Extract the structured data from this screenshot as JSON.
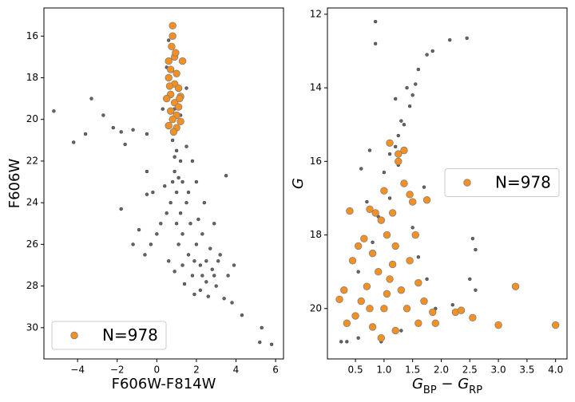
{
  "chart_data": [
    {
      "type": "scatter",
      "xlabel": [
        {
          "text": "F606W-F814W"
        }
      ],
      "ylabel": {
        "text": "F606W",
        "italic": false
      },
      "xlim": [
        -5.7,
        6.4
      ],
      "ylim": [
        14.65,
        31.5
      ],
      "y_inverted": true,
      "xticks": [
        {
          "value": -4,
          "label": "−4"
        },
        {
          "value": -2,
          "label": "−2"
        },
        0,
        2,
        4,
        6
      ],
      "yticks": [
        16,
        18,
        20,
        22,
        24,
        26,
        28,
        30
      ],
      "legend": "lower left",
      "series": [
        {
          "color": "#000000",
          "edgecolor": "#000000",
          "x": [
            0.6,
            0.5,
            0.9,
            1.2,
            0.3,
            1.5,
            -3.3,
            -2.7,
            -5.2,
            -4.2,
            -3.6,
            -2.2,
            -1.8,
            -1.2,
            -1.6,
            -0.5,
            -1.8,
            -0.5,
            -0.5,
            0.8,
            1.0,
            1.2,
            0.9,
            1.3,
            1.0,
            1.5,
            1.2,
            1.7,
            1.3,
            2.0,
            1.6,
            2.2,
            1.8,
            2.5,
            2.2,
            0.5,
            0.2,
            0.0,
            -0.3,
            -0.6,
            -0.9,
            -1.2,
            0.6,
            0.9,
            1.4,
            2.8,
            3.0,
            3.4,
            3.8,
            4.3,
            5.3,
            5.2,
            5.8,
            2.9,
            2.7,
            3.2,
            3.9,
            3.5,
            2.4,
            2.0,
            1.8,
            1.5,
            2.6,
            1.9,
            3.6,
            0.8,
            0.7,
            1.0,
            1.1,
            1.3,
            2.3,
            2.1,
            2.5,
            2.9,
            3.1,
            1.6,
            1.1,
            0.9,
            1.9,
            2.3,
            0.4,
            -0.2
          ],
          "y": [
            16.2,
            17.5,
            19.5,
            19.8,
            19.5,
            18.5,
            19.0,
            19.8,
            19.6,
            21.1,
            20.7,
            20.4,
            20.6,
            20.5,
            21.2,
            20.7,
            24.3,
            22.5,
            23.6,
            21.0,
            21.5,
            22.0,
            22.5,
            23.0,
            23.5,
            24.0,
            24.5,
            25.0,
            25.5,
            26.0,
            26.5,
            27.0,
            27.5,
            27.8,
            28.2,
            24.5,
            25.0,
            25.5,
            26.0,
            26.5,
            25.3,
            26.0,
            26.8,
            27.3,
            27.9,
            27.2,
            28.0,
            28.6,
            28.8,
            29.4,
            30.0,
            30.7,
            30.8,
            25.0,
            26.2,
            26.5,
            27.0,
            22.7,
            24.0,
            23.0,
            22.0,
            21.3,
            28.5,
            28.4,
            27.5,
            23.0,
            24.0,
            25.0,
            26.0,
            27.0,
            25.5,
            24.8,
            26.8,
            27.5,
            26.8,
            23.5,
            22.8,
            21.8,
            26.8,
            27.5,
            23.2,
            23.5
          ]
        },
        {
          "name": "N=978",
          "color": "#f7901e",
          "edgecolor": "#7f7f7f",
          "x": [
            0.8,
            0.8,
            0.75,
            0.9,
            0.6,
            1.3,
            0.7,
            1.0,
            0.6,
            0.9,
            1.1,
            0.7,
            1.2,
            0.5,
            0.9,
            1.1,
            0.7,
            1.0,
            0.8,
            1.2,
            0.6,
            1.0,
            0.85,
            1.15,
            0.65,
            0.95
          ],
          "y": [
            15.5,
            16.0,
            16.5,
            17.0,
            17.2,
            17.2,
            17.6,
            17.8,
            18.0,
            18.3,
            18.5,
            18.8,
            18.9,
            19.0,
            19.2,
            19.4,
            19.6,
            19.8,
            20.0,
            20.1,
            20.3,
            20.4,
            20.6,
            19.0,
            18.4,
            16.8
          ]
        }
      ]
    },
    {
      "type": "scatter",
      "xlabel": [
        {
          "text": "G"
        },
        {
          "text": "BP",
          "sub": true
        },
        {
          "text": " − G"
        },
        {
          "text": "RP",
          "sub": true
        }
      ],
      "ylabel": {
        "text": "G",
        "italic": true
      },
      "xlim": [
        0.01,
        4.2
      ],
      "ylim": [
        11.83,
        21.37
      ],
      "y_inverted": true,
      "xticks": [
        0.5,
        {
          "value": 1,
          "label": "1.0"
        },
        1.5,
        {
          "value": 2,
          "label": "2.0"
        },
        2.5,
        {
          "value": 3,
          "label": "3.0"
        },
        3.5,
        {
          "value": 4,
          "label": "4.0"
        }
      ],
      "yticks": [
        12,
        14,
        16,
        18,
        20
      ],
      "legend": "center right",
      "series": [
        {
          "color": "#000000",
          "edgecolor": "#000000",
          "x": [
            0.85,
            0.85,
            2.15,
            2.45,
            1.75,
            1.85,
            1.6,
            1.55,
            1.5,
            1.45,
            1.35,
            1.3,
            1.25,
            1.2,
            1.4,
            1.1,
            0.75,
            0.6,
            1.0,
            1.1,
            0.9,
            0.8,
            0.55,
            0.25,
            0.35,
            0.55,
            2.55,
            2.5,
            2.6,
            2.6,
            1.9,
            1.5,
            1.6,
            1.75,
            1.3,
            0.95,
            1.2,
            1.7,
            2.2,
            0.7,
            1.25
          ],
          "y": [
            12.2,
            12.8,
            12.7,
            12.65,
            13.1,
            13.0,
            13.5,
            13.9,
            14.2,
            14.5,
            15.0,
            14.9,
            15.3,
            15.6,
            14.0,
            15.8,
            15.7,
            16.2,
            16.3,
            17.0,
            17.5,
            18.2,
            19.0,
            20.9,
            20.9,
            20.8,
            18.1,
            19.2,
            19.5,
            18.4,
            20.0,
            17.8,
            18.6,
            19.2,
            20.6,
            20.9,
            14.3,
            16.7,
            19.9,
            17.1,
            16.1
          ]
        },
        {
          "name": "N=978",
          "color": "#f7901e",
          "edgecolor": "#7f7f7f",
          "x": [
            0.85,
            0.75,
            0.4,
            1.1,
            1.25,
            1.35,
            1.45,
            1.0,
            1.15,
            0.95,
            1.05,
            1.2,
            0.8,
            0.9,
            1.1,
            0.7,
            1.3,
            0.6,
            1.0,
            0.5,
            1.4,
            0.8,
            1.2,
            0.35,
            0.22,
            0.3,
            0.45,
            0.55,
            1.6,
            1.7,
            1.85,
            1.9,
            2.25,
            2.35,
            2.55,
            3.0,
            3.3,
            4.0,
            1.75,
            1.5,
            1.55,
            1.45,
            1.35,
            1.25,
            0.65,
            1.6,
            0.95,
            1.05,
            0.75,
            1.15
          ],
          "y": [
            17.4,
            17.3,
            17.35,
            15.5,
            16.0,
            16.6,
            16.9,
            16.8,
            17.4,
            17.6,
            18.0,
            18.3,
            18.5,
            19.0,
            19.2,
            19.4,
            19.5,
            19.8,
            20.0,
            20.2,
            20.0,
            20.5,
            20.6,
            20.4,
            19.75,
            19.5,
            18.7,
            18.3,
            19.3,
            19.8,
            20.1,
            20.4,
            20.1,
            20.05,
            20.25,
            20.45,
            19.4,
            20.45,
            17.05,
            17.1,
            18.0,
            18.7,
            15.7,
            15.8,
            18.1,
            20.4,
            20.8,
            19.6,
            20.0,
            18.8
          ]
        }
      ]
    }
  ]
}
